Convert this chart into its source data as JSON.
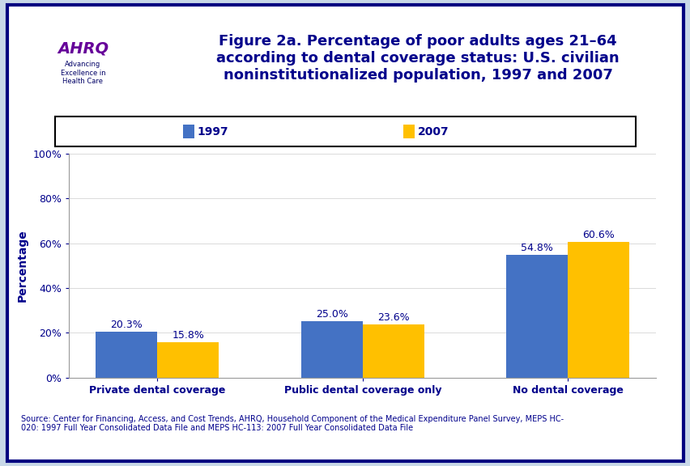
{
  "categories": [
    "Private dental coverage",
    "Public dental coverage only",
    "No dental coverage"
  ],
  "values_1997": [
    20.3,
    25.0,
    54.8
  ],
  "values_2007": [
    15.8,
    23.6,
    60.6
  ],
  "labels_1997": [
    "20.3%",
    "25.0%",
    "54.8%"
  ],
  "labels_2007": [
    "15.8%",
    "23.6%",
    "60.6%"
  ],
  "color_1997": "#4472C4",
  "color_2007": "#FFC000",
  "ylabel": "Percentage",
  "ylim": [
    0,
    100
  ],
  "yticks": [
    0,
    20,
    40,
    60,
    80,
    100
  ],
  "ytick_labels": [
    "0%",
    "20%",
    "40%",
    "60%",
    "80%",
    "100%"
  ],
  "legend_1997": "1997",
  "legend_2007": "2007",
  "title_line1": "Figure 2a. Percentage of poor adults ages 21–64",
  "title_line2": "according to dental coverage status: U.S. civilian",
  "title_line3": "noninstitutionalized population, 1997 and 2007",
  "source_text": "Source: Center for Financing, Access, and Cost Trends, AHRQ, Household Component of the Medical Expenditure Panel Survey, MEPS HC-\n020: 1997 Full Year Consolidated Data File and MEPS HC-113: 2007 Full Year Consolidated Data File",
  "bar_width": 0.3,
  "background_color": "#FFFFFF",
  "outer_bg": "#C8D8E8",
  "title_color": "#00008B",
  "axis_label_color": "#00008B",
  "tick_label_color": "#00008B",
  "bar_label_color": "#00008B",
  "source_color": "#00008B",
  "blue_bar_color": "#000080",
  "border_color": "#000080",
  "legend_border": "#000000",
  "xticklabel_fontsize": 9,
  "yticklabel_fontsize": 9,
  "bar_label_fontsize": 9,
  "ylabel_fontsize": 10
}
